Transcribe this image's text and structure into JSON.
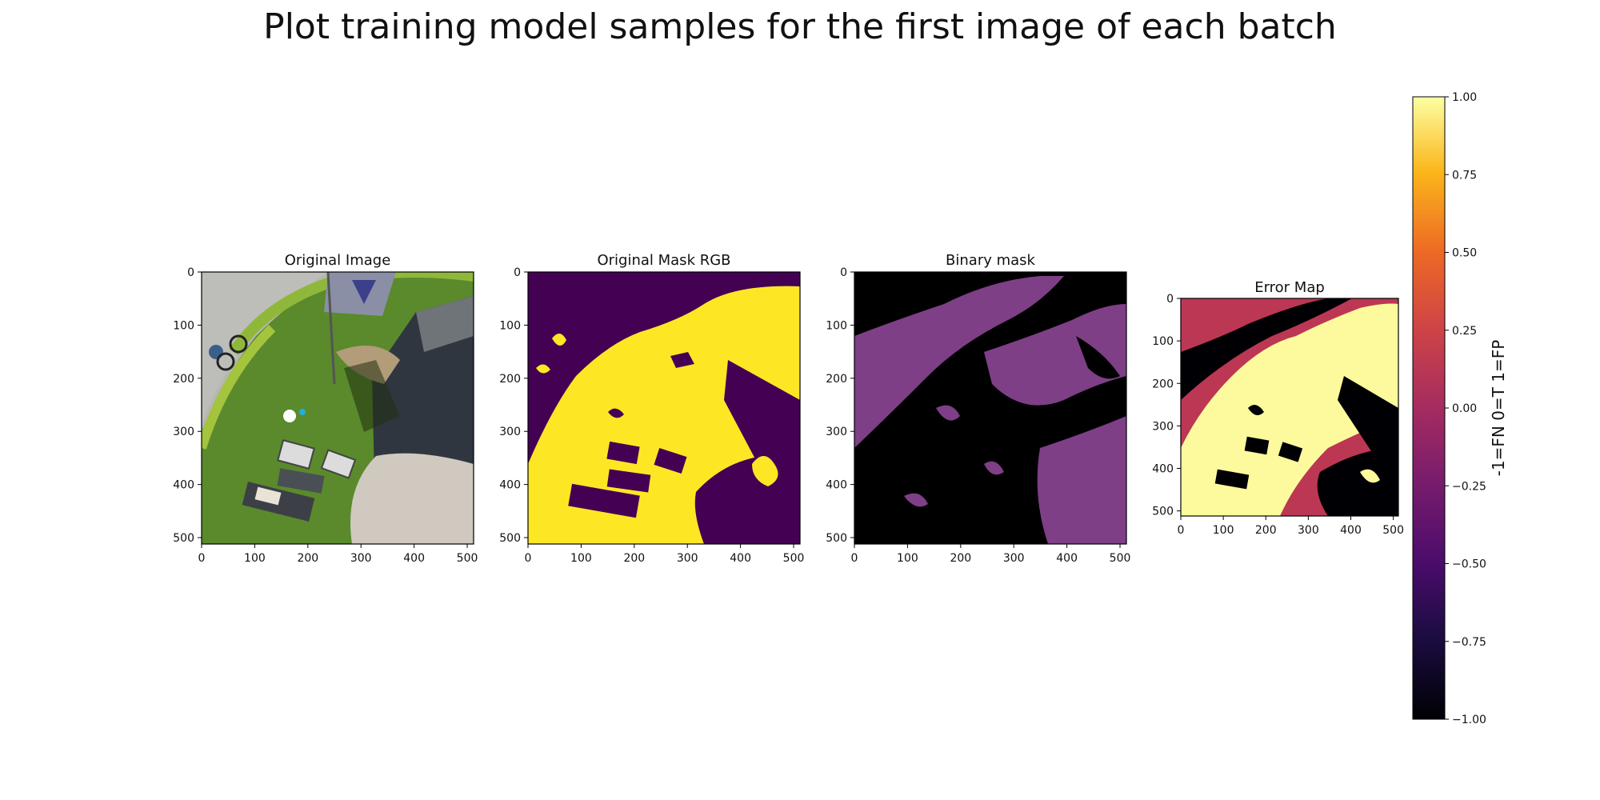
{
  "title": "Plot training model samples for the first image of each batch",
  "chart_data": [
    {
      "type": "image",
      "title": "Original Image",
      "xticks": [
        0,
        100,
        200,
        300,
        400,
        500
      ],
      "yticks": [
        0,
        100,
        200,
        300,
        400,
        500
      ],
      "xlim": [
        0,
        512
      ],
      "ylim": [
        512,
        0
      ]
    },
    {
      "type": "image",
      "title": "Original Mask RGB",
      "xticks": [
        0,
        100,
        200,
        300,
        400,
        500
      ],
      "yticks": [
        0,
        100,
        200,
        300,
        400,
        500
      ],
      "xlim": [
        0,
        512
      ],
      "ylim": [
        512,
        0
      ],
      "colors": {
        "background": "#440154",
        "foreground": "#fde725"
      }
    },
    {
      "type": "image",
      "title": "Binary mask",
      "xticks": [
        0,
        100,
        200,
        300,
        400,
        500
      ],
      "yticks": [
        0,
        100,
        200,
        300,
        400,
        500
      ],
      "xlim": [
        0,
        512
      ],
      "ylim": [
        512,
        0
      ],
      "colors": {
        "background": "#000000",
        "foreground": "#7e3f87"
      }
    },
    {
      "type": "heatmap",
      "title": "Error Map",
      "xticks": [
        0,
        100,
        200,
        300,
        400,
        500
      ],
      "yticks": [
        0,
        100,
        200,
        300,
        400,
        500
      ],
      "xlim": [
        0,
        512
      ],
      "ylim": [
        512,
        0
      ],
      "colorbar": {
        "label": "-1=FN 0=T 1=FP",
        "ticks": [
          "1.00",
          "0.75",
          "0.50",
          "0.25",
          "0.00",
          "−0.25",
          "−0.50",
          "−0.75",
          "−1.00"
        ],
        "range": [
          -1,
          1
        ],
        "colormap": [
          "#000004",
          "#330a5f",
          "#781c6d",
          "#bb3755",
          "#ed6925",
          "#fbb61a",
          "#fcffa4"
        ]
      },
      "colors": {
        "fn": "#000004",
        "t": "#bc3754",
        "fp": "#fcfa9c"
      }
    }
  ]
}
